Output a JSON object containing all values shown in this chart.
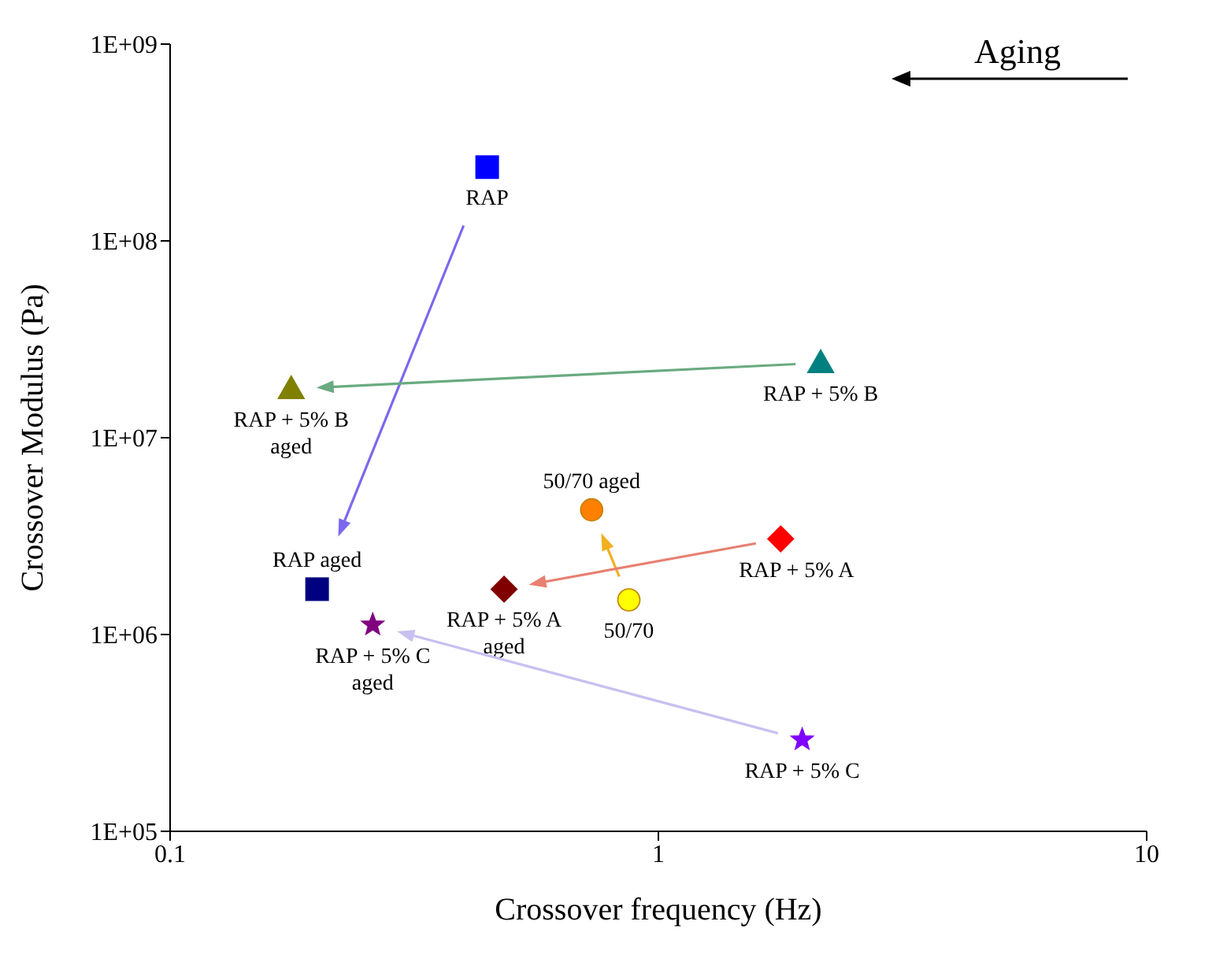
{
  "chart_data": {
    "type": "scatter",
    "xlabel": "Crossover frequency (Hz)",
    "ylabel": "Crossover Modulus (Pa)",
    "log": "xy",
    "grid": false,
    "legend": false,
    "xlim": [
      0.1,
      10
    ],
    "xticks": [
      0.1,
      1,
      10
    ],
    "ylim": [
      100000,
      1000000000
    ],
    "yticks": [
      {
        "value": 100000,
        "label": "1E+05"
      },
      {
        "value": 1000000,
        "label": "1E+06"
      },
      {
        "value": 10000000,
        "label": "1E+07"
      },
      {
        "value": 100000000,
        "label": "1E+08"
      },
      {
        "value": 1000000000,
        "label": "1E+09"
      }
    ],
    "annotations": [
      "Aging"
    ],
    "series": [
      {
        "name": "RAP",
        "color": "#0000ff",
        "marker": "square",
        "x": [
          0.446
        ],
        "values": [
          237000000
        ]
      },
      {
        "name": "RAP aged",
        "color": "#000080",
        "marker": "square",
        "x": [
          0.2
        ],
        "values": [
          1700000
        ]
      },
      {
        "name": "RAP + 5% B",
        "color": "#008080",
        "marker": "triangle",
        "x": [
          2.15
        ],
        "values": [
          24000000
        ]
      },
      {
        "name": "RAP + 5% B aged",
        "color": "#808000",
        "marker": "triangle",
        "x": [
          0.177
        ],
        "values": [
          17700000
        ]
      },
      {
        "name": "50/70 aged",
        "color": "#ff8000",
        "marker": "circle",
        "x": [
          0.73
        ],
        "values": [
          4300000
        ]
      },
      {
        "name": "50/70",
        "color": "#ffff00",
        "marker": "circle",
        "x": [
          0.87
        ],
        "values": [
          1500000
        ]
      },
      {
        "name": "RAP + 5% A",
        "color": "#ff0000",
        "marker": "diamond",
        "x": [
          1.78
        ],
        "values": [
          3060000
        ]
      },
      {
        "name": "RAP + 5% A aged",
        "color": "#800000",
        "marker": "diamond",
        "x": [
          0.483
        ],
        "values": [
          1700000
        ]
      },
      {
        "name": "RAP + 5% C",
        "color": "#8000ff",
        "marker": "star",
        "x": [
          1.97
        ],
        "values": [
          292000
        ]
      },
      {
        "name": "RAP + 5% C aged",
        "color": "#800080",
        "marker": "star",
        "x": [
          0.26
        ],
        "values": [
          1120000
        ]
      }
    ]
  }
}
